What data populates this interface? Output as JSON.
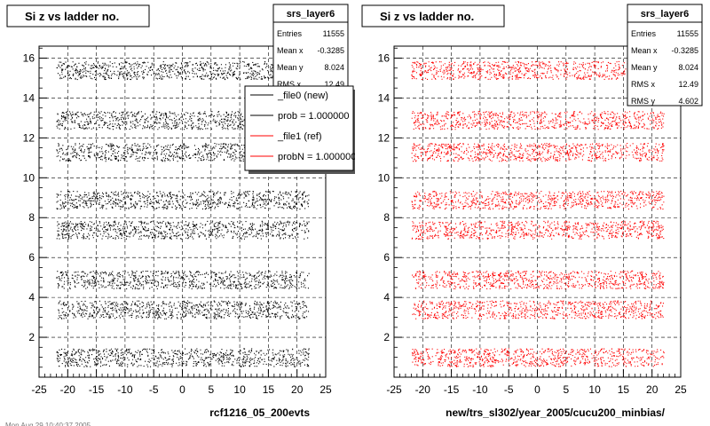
{
  "chart_data": [
    {
      "type": "scatter",
      "title": "Si z vs ladder no.",
      "xlabel": "rcf1216_05_200evts",
      "ylabel": "",
      "xlim": [
        -25,
        25
      ],
      "ylim": [
        0,
        16.6
      ],
      "grid": true,
      "x_ticks": [
        "-25",
        "-20",
        "-15",
        "-10",
        "-5",
        "0",
        "5",
        "10",
        "15",
        "20",
        "25"
      ],
      "y_ticks": [
        "2",
        "4",
        "6",
        "8",
        "10",
        "12",
        "14",
        "16"
      ],
      "marker_color": "#000000",
      "bands": [
        {
          "y_center": 1.0,
          "x_range": [
            -22,
            22
          ]
        },
        {
          "y_center": 3.4,
          "x_range": [
            -22,
            22
          ]
        },
        {
          "y_center": 4.9,
          "x_range": [
            -22,
            22
          ]
        },
        {
          "y_center": 7.4,
          "x_range": [
            -22,
            22
          ]
        },
        {
          "y_center": 8.9,
          "x_range": [
            -22,
            22
          ]
        },
        {
          "y_center": 11.3,
          "x_range": [
            -22,
            22
          ]
        },
        {
          "y_center": 12.9,
          "x_range": [
            -22,
            22
          ]
        },
        {
          "y_center": 15.4,
          "x_range": [
            -22,
            22
          ]
        }
      ],
      "stats": {
        "name": "srs_layer6",
        "entries_label": "Entries",
        "entries_value": "11555",
        "mean_x_label": "Mean x",
        "mean_x_value": "-0.3285",
        "mean_y_label": "Mean y",
        "mean_y_value": "8.024",
        "rms_x_label": "RMS x",
        "rms_x_value": "12.49"
      },
      "legend": [
        {
          "label": "_file0 (new)",
          "color": "#000000"
        },
        {
          "label": "prob = 1.000000",
          "color": "#000000"
        },
        {
          "label": "_file1 (ref)",
          "color": "#ff0000"
        },
        {
          "label": "probN = 1.000000",
          "color": "#ff0000"
        }
      ],
      "footer": "Mon Aug 29 10:40:37 2005"
    },
    {
      "type": "scatter",
      "title": "Si z vs ladder no.",
      "xlabel": "new/trs_sl302/year_2005/cucu200_minbias/",
      "ylabel": "",
      "xlim": [
        -25,
        25
      ],
      "ylim": [
        0,
        16.6
      ],
      "grid": true,
      "x_ticks": [
        "-25",
        "-20",
        "-15",
        "-10",
        "-5",
        "0",
        "5",
        "10",
        "15",
        "20",
        "25"
      ],
      "y_ticks": [
        "2",
        "4",
        "6",
        "8",
        "10",
        "12",
        "14",
        "16"
      ],
      "marker_color": "#ff0000",
      "bands": [
        {
          "y_center": 1.0,
          "x_range": [
            -22,
            22
          ]
        },
        {
          "y_center": 3.4,
          "x_range": [
            -22,
            22
          ]
        },
        {
          "y_center": 4.9,
          "x_range": [
            -22,
            22
          ]
        },
        {
          "y_center": 7.4,
          "x_range": [
            -22,
            22
          ]
        },
        {
          "y_center": 8.9,
          "x_range": [
            -22,
            22
          ]
        },
        {
          "y_center": 11.3,
          "x_range": [
            -22,
            22
          ]
        },
        {
          "y_center": 12.9,
          "x_range": [
            -22,
            22
          ]
        },
        {
          "y_center": 15.4,
          "x_range": [
            -22,
            22
          ]
        }
      ],
      "stats": {
        "name": "srs_layer6",
        "entries_label": "Entries",
        "entries_value": "11555",
        "mean_x_label": "Mean x",
        "mean_x_value": "-0.3285",
        "mean_y_label": "Mean y",
        "mean_y_value": "8.024",
        "rms_x_label": "RMS x",
        "rms_x_value": "12.49",
        "rms_y_label": "RMS y",
        "rms_y_value": "4.602"
      }
    }
  ]
}
